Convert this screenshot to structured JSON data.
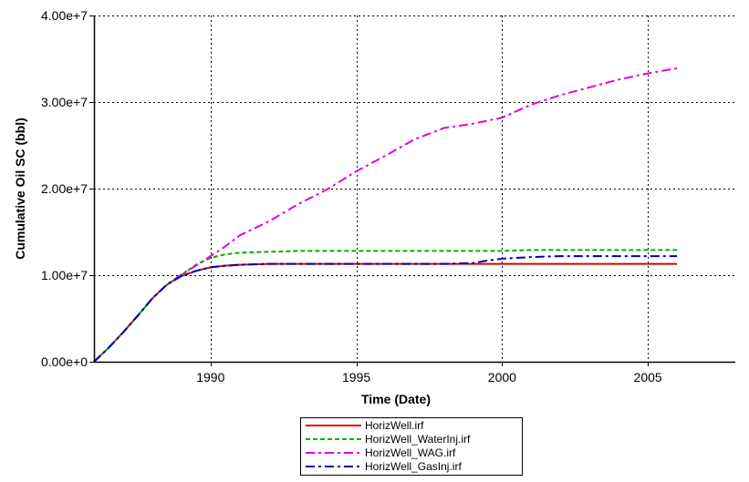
{
  "chart_data": {
    "type": "line",
    "title": "",
    "xlabel": "Time (Date)",
    "ylabel": "Cumulative Oil SC (bbl)",
    "xlim": [
      1986,
      2008
    ],
    "ylim": [
      0,
      40000000
    ],
    "x_ticks": [
      1990,
      1995,
      2000,
      2005
    ],
    "x_tick_labels": [
      "1990",
      "1995",
      "2000",
      "2005"
    ],
    "y_ticks": [
      0,
      10000000,
      20000000,
      30000000,
      40000000
    ],
    "y_tick_labels": [
      "0.00e+0",
      "1.00e+7",
      "2.00e+7",
      "3.00e+7",
      "4.00e+7"
    ],
    "grid": true,
    "legend_position": "bottom-center",
    "series": [
      {
        "name": "HorizWell.irf",
        "color": "#e00000",
        "style": "solid",
        "x": [
          1986,
          1986.5,
          1987,
          1987.5,
          1988,
          1988.5,
          1989,
          1989.5,
          1990,
          1990.5,
          1991,
          1992,
          1995,
          2000,
          2005,
          2006
        ],
        "y": [
          0,
          1600000,
          3400000,
          5300000,
          7300000,
          8900000,
          9900000,
          10500000,
          10900000,
          11100000,
          11200000,
          11300000,
          11300000,
          11300000,
          11300000,
          11300000
        ]
      },
      {
        "name": "HorizWell_WaterInj.irf",
        "color": "#00b000",
        "style": "dashed",
        "x": [
          1986,
          1986.5,
          1987,
          1987.5,
          1988,
          1988.5,
          1989,
          1989.5,
          1990,
          1990.5,
          1991,
          1992,
          1993,
          1995,
          2000,
          2001,
          2005,
          2006
        ],
        "y": [
          0,
          1600000,
          3400000,
          5300000,
          7300000,
          8900000,
          10000000,
          11200000,
          12000000,
          12400000,
          12600000,
          12700000,
          12800000,
          12800000,
          12800000,
          12900000,
          12900000,
          12900000
        ]
      },
      {
        "name": "HorizWell_WAG.irf",
        "color": "#e000e0",
        "style": "dashdot",
        "x": [
          1986,
          1986.5,
          1987,
          1987.5,
          1988,
          1988.5,
          1989,
          1989.5,
          1990,
          1990.5,
          1991,
          1992,
          1993,
          1994,
          1995,
          1996,
          1997,
          1998,
          1999,
          2000,
          2001,
          2002,
          2003,
          2004,
          2005,
          2006
        ],
        "y": [
          0,
          1600000,
          3400000,
          5300000,
          7300000,
          8900000,
          10100000,
          11100000,
          12200000,
          13300000,
          14600000,
          16200000,
          18200000,
          19900000,
          22000000,
          23800000,
          25700000,
          27000000,
          27500000,
          28200000,
          29700000,
          30800000,
          31700000,
          32600000,
          33300000,
          33900000
        ]
      },
      {
        "name": "HorizWell_GasInj.irf",
        "color": "#0000b0",
        "style": "dashdot",
        "x": [
          1986,
          1986.5,
          1987,
          1987.5,
          1988,
          1988.5,
          1989,
          1989.5,
          1990,
          1990.5,
          1991,
          1992,
          1995,
          1998,
          1999,
          1999.5,
          2000,
          2001,
          2002,
          2005,
          2006
        ],
        "y": [
          0,
          1600000,
          3400000,
          5300000,
          7300000,
          8900000,
          9900000,
          10500000,
          10900000,
          11100000,
          11200000,
          11300000,
          11300000,
          11300000,
          11400000,
          11700000,
          11900000,
          12100000,
          12200000,
          12200000,
          12200000
        ]
      }
    ]
  }
}
